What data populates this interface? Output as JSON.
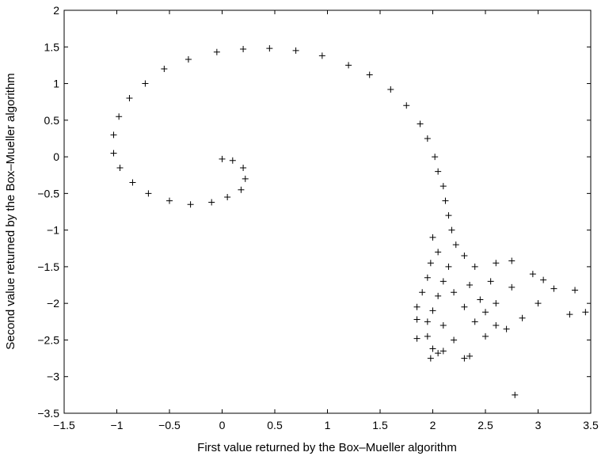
{
  "chart_data": {
    "type": "scatter",
    "xlabel": "First value returned by the Box–Mueller algorithm",
    "ylabel": "Second value returned by the Box–Mueller algorithm",
    "xlim": [
      -1.5,
      3.5
    ],
    "ylim": [
      -3.5,
      2
    ],
    "x_ticks": [
      "-1.5",
      "-1",
      "-0.5",
      "0",
      "0.5",
      "1",
      "1.5",
      "2",
      "2.5",
      "3",
      "3.5"
    ],
    "y_ticks": [
      "2",
      "1.5",
      "1",
      "0.5",
      "0",
      "-0.5",
      "-1",
      "-1.5",
      "-2",
      "-2.5",
      "-3",
      "-3.5"
    ],
    "marker": "+",
    "grid": false,
    "series": [
      {
        "points": [
          [
            0.0,
            -0.03
          ],
          [
            0.1,
            -0.05
          ],
          [
            0.2,
            -0.15
          ],
          [
            0.22,
            -0.3
          ],
          [
            0.18,
            -0.45
          ],
          [
            0.05,
            -0.55
          ],
          [
            -0.1,
            -0.62
          ],
          [
            -0.3,
            -0.65
          ],
          [
            -0.5,
            -0.6
          ],
          [
            -0.7,
            -0.5
          ],
          [
            -0.85,
            -0.35
          ],
          [
            -0.97,
            -0.15
          ],
          [
            -1.03,
            0.05
          ],
          [
            -1.03,
            0.3
          ],
          [
            -0.98,
            0.55
          ],
          [
            -0.88,
            0.8
          ],
          [
            -0.73,
            1.0
          ],
          [
            -0.55,
            1.2
          ],
          [
            -0.32,
            1.33
          ],
          [
            -0.05,
            1.43
          ],
          [
            0.2,
            1.47
          ],
          [
            0.45,
            1.48
          ],
          [
            0.7,
            1.45
          ],
          [
            0.95,
            1.38
          ],
          [
            1.2,
            1.25
          ],
          [
            1.4,
            1.12
          ],
          [
            1.6,
            0.92
          ],
          [
            1.75,
            0.7
          ],
          [
            1.88,
            0.45
          ],
          [
            1.95,
            0.25
          ],
          [
            2.02,
            0.0
          ],
          [
            2.05,
            -0.2
          ],
          [
            2.1,
            -0.4
          ],
          [
            2.12,
            -0.6
          ],
          [
            2.15,
            -0.8
          ],
          [
            2.18,
            -1.0
          ],
          [
            2.0,
            -1.1
          ],
          [
            2.22,
            -1.2
          ],
          [
            2.05,
            -1.3
          ],
          [
            2.3,
            -1.35
          ],
          [
            1.98,
            -1.45
          ],
          [
            2.15,
            -1.5
          ],
          [
            2.4,
            -1.5
          ],
          [
            2.6,
            -1.45
          ],
          [
            2.75,
            -1.42
          ],
          [
            1.95,
            -1.65
          ],
          [
            2.1,
            -1.7
          ],
          [
            2.35,
            -1.75
          ],
          [
            2.55,
            -1.7
          ],
          [
            2.95,
            -1.6
          ],
          [
            3.05,
            -1.68
          ],
          [
            1.9,
            -1.85
          ],
          [
            2.05,
            -1.9
          ],
          [
            2.2,
            -1.85
          ],
          [
            2.45,
            -1.95
          ],
          [
            2.6,
            -2.0
          ],
          [
            2.75,
            -1.78
          ],
          [
            3.15,
            -1.8
          ],
          [
            1.85,
            -2.05
          ],
          [
            2.0,
            -2.1
          ],
          [
            2.3,
            -2.05
          ],
          [
            2.5,
            -2.12
          ],
          [
            3.0,
            -2.0
          ],
          [
            3.35,
            -1.82
          ],
          [
            1.85,
            -2.22
          ],
          [
            1.95,
            -2.25
          ],
          [
            2.1,
            -2.3
          ],
          [
            2.4,
            -2.25
          ],
          [
            2.6,
            -2.3
          ],
          [
            2.85,
            -2.2
          ],
          [
            3.3,
            -2.15
          ],
          [
            3.45,
            -2.12
          ],
          [
            1.85,
            -2.48
          ],
          [
            1.95,
            -2.45
          ],
          [
            2.2,
            -2.5
          ],
          [
            2.5,
            -2.45
          ],
          [
            2.7,
            -2.35
          ],
          [
            2.0,
            -2.62
          ],
          [
            2.05,
            -2.68
          ],
          [
            1.98,
            -2.75
          ],
          [
            2.3,
            -2.75
          ],
          [
            2.35,
            -2.72
          ],
          [
            2.1,
            -2.65
          ],
          [
            2.78,
            -3.25
          ]
        ]
      }
    ]
  }
}
